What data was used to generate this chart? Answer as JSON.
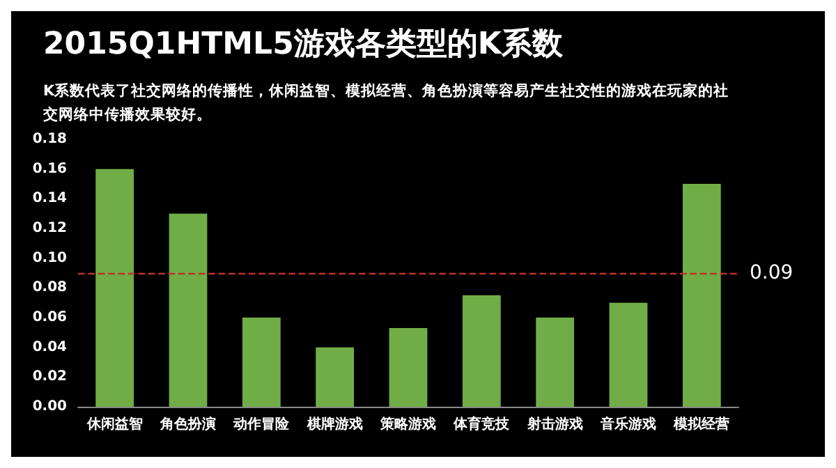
{
  "chart_data": {
    "type": "bar",
    "title": "2015Q1HTML5游戏各类型的K系数",
    "subtitle": "K系数代表了社交网络的传播性，休闲益智、模拟经营、角色扮演等容易产生社交性的游戏在玩家的社交网络中传播效果较好。",
    "categories": [
      "休闲益智",
      "角色扮演",
      "动作冒险",
      "棋牌游戏",
      "策略游戏",
      "体育竞技",
      "射击游戏",
      "音乐游戏",
      "模拟经营"
    ],
    "values": [
      0.16,
      0.13,
      0.06,
      0.04,
      0.053,
      0.075,
      0.06,
      0.07,
      0.15
    ],
    "color": "#70ad47",
    "ylim": [
      0,
      0.18
    ],
    "yticks": [
      {
        "value": 0,
        "label": "0.00"
      },
      {
        "value": 0.02,
        "label": "0.02"
      },
      {
        "value": 0.04,
        "label": "0.04"
      },
      {
        "value": 0.06,
        "label": "0.06"
      },
      {
        "value": 0.08,
        "label": "0.08"
      },
      {
        "value": 0.1,
        "label": "0.10"
      },
      {
        "value": 0.12,
        "label": "0.12"
      },
      {
        "value": 0.14,
        "label": "0.14"
      },
      {
        "value": 0.16,
        "label": "0.16"
      },
      {
        "value": 0.18,
        "label": "0.18"
      }
    ],
    "ref_lines": [
      {
        "axis": "y",
        "value": 0.09,
        "label": "0.09",
        "color": "#c0302a",
        "line_style": "dashed"
      }
    ],
    "grid": false
  }
}
